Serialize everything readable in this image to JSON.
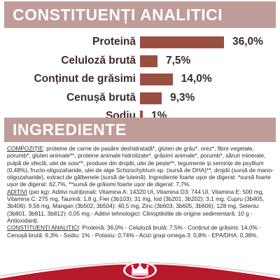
{
  "analytics_section": {
    "title": "CONSTITUENȚI ANALITICI",
    "bar_color": "#9a4f43",
    "banner_color": "#bf9c98",
    "scale_max_percent": 36.0,
    "rows": [
      {
        "label": "Proteină",
        "value": "36,0%",
        "percent": 36.0
      },
      {
        "label": "Celuloză brută",
        "value": "7,5%",
        "percent": 7.5
      },
      {
        "label": "Conținut de grăsimi",
        "value": "14,0%",
        "percent": 14.0
      },
      {
        "label": "Cenușă brută",
        "value": "9,3%",
        "percent": 9.3
      },
      {
        "label": "Sodiu",
        "value": "1%",
        "percent": 1.0
      }
    ]
  },
  "ingredients_section": {
    "title": "INGREDIENTE",
    "composition_label": "COMPOZIȚIE",
    "composition_text": ": proteine de carne de pasăre deshidratată*, gluten de grâu*, orez*, fibre vegetale, porumb*, gluten animale**, proteine animale hidrolizate*, grăsimi animale*, porumb*, săruri minerale, pulpă de sfeclă, ulei de soia**, produse din drojdii, ulei de pește**, tegumente și semințe de psyllium (0,48%), fructo-oligozaharide, ulei de alge Schizochytrium sp. (sursă de DHA)**, drojdii (sursă de mano-oligozaharide), extract de gălbenele (sursă de luteină). Ingrediente foarte ușor de digerat: *sursă foarte ușor de digerat: 62,7%, **sursă de grăsimi foarte ușor de digerat: 7,7%.",
    "additives_label": "ADITIVI",
    "additives_text": " (per kg): Aditivi nutriționali: Vitamina A: 14320 UI, Vitamina D3: 744 UI, Vitamina E: 500 mg, Vitamina C: 275 mg, Taurină: 1,8 g, Fier (3b103): 31 mg, Iod (3b201, 3b202): 3,1 mg, Cupru (3b405, 3b406): 9,56 mg, Mangan (3b502, 3b504): 40,5 mg, Zinc (3b603, 3b605, 3b606): 128 mg, Seleniu (3b801, 3b811, 3b812): 0,05 mg - Aditivi tehnologici: Clinoptilolite de origine sedimentară: 10 g - Antioxidanți.",
    "constituents_label": "CONSTITUENȚI ANALITICI",
    "constituents_text": ": Proteină: 36,0% - Celuloză brută: 7,5% - Conținut de grăsimi: 14,0% - Cenușă brută: 9,3% - Sodiu: 1% - Potasiu: 0,74% - Acizi grași omega-3: 0,8% - EPA/DHA: 0,38%."
  },
  "footer": {
    "swoosh_color": "#b5192a",
    "logo_icon": "royal-canin-crown-logo"
  }
}
